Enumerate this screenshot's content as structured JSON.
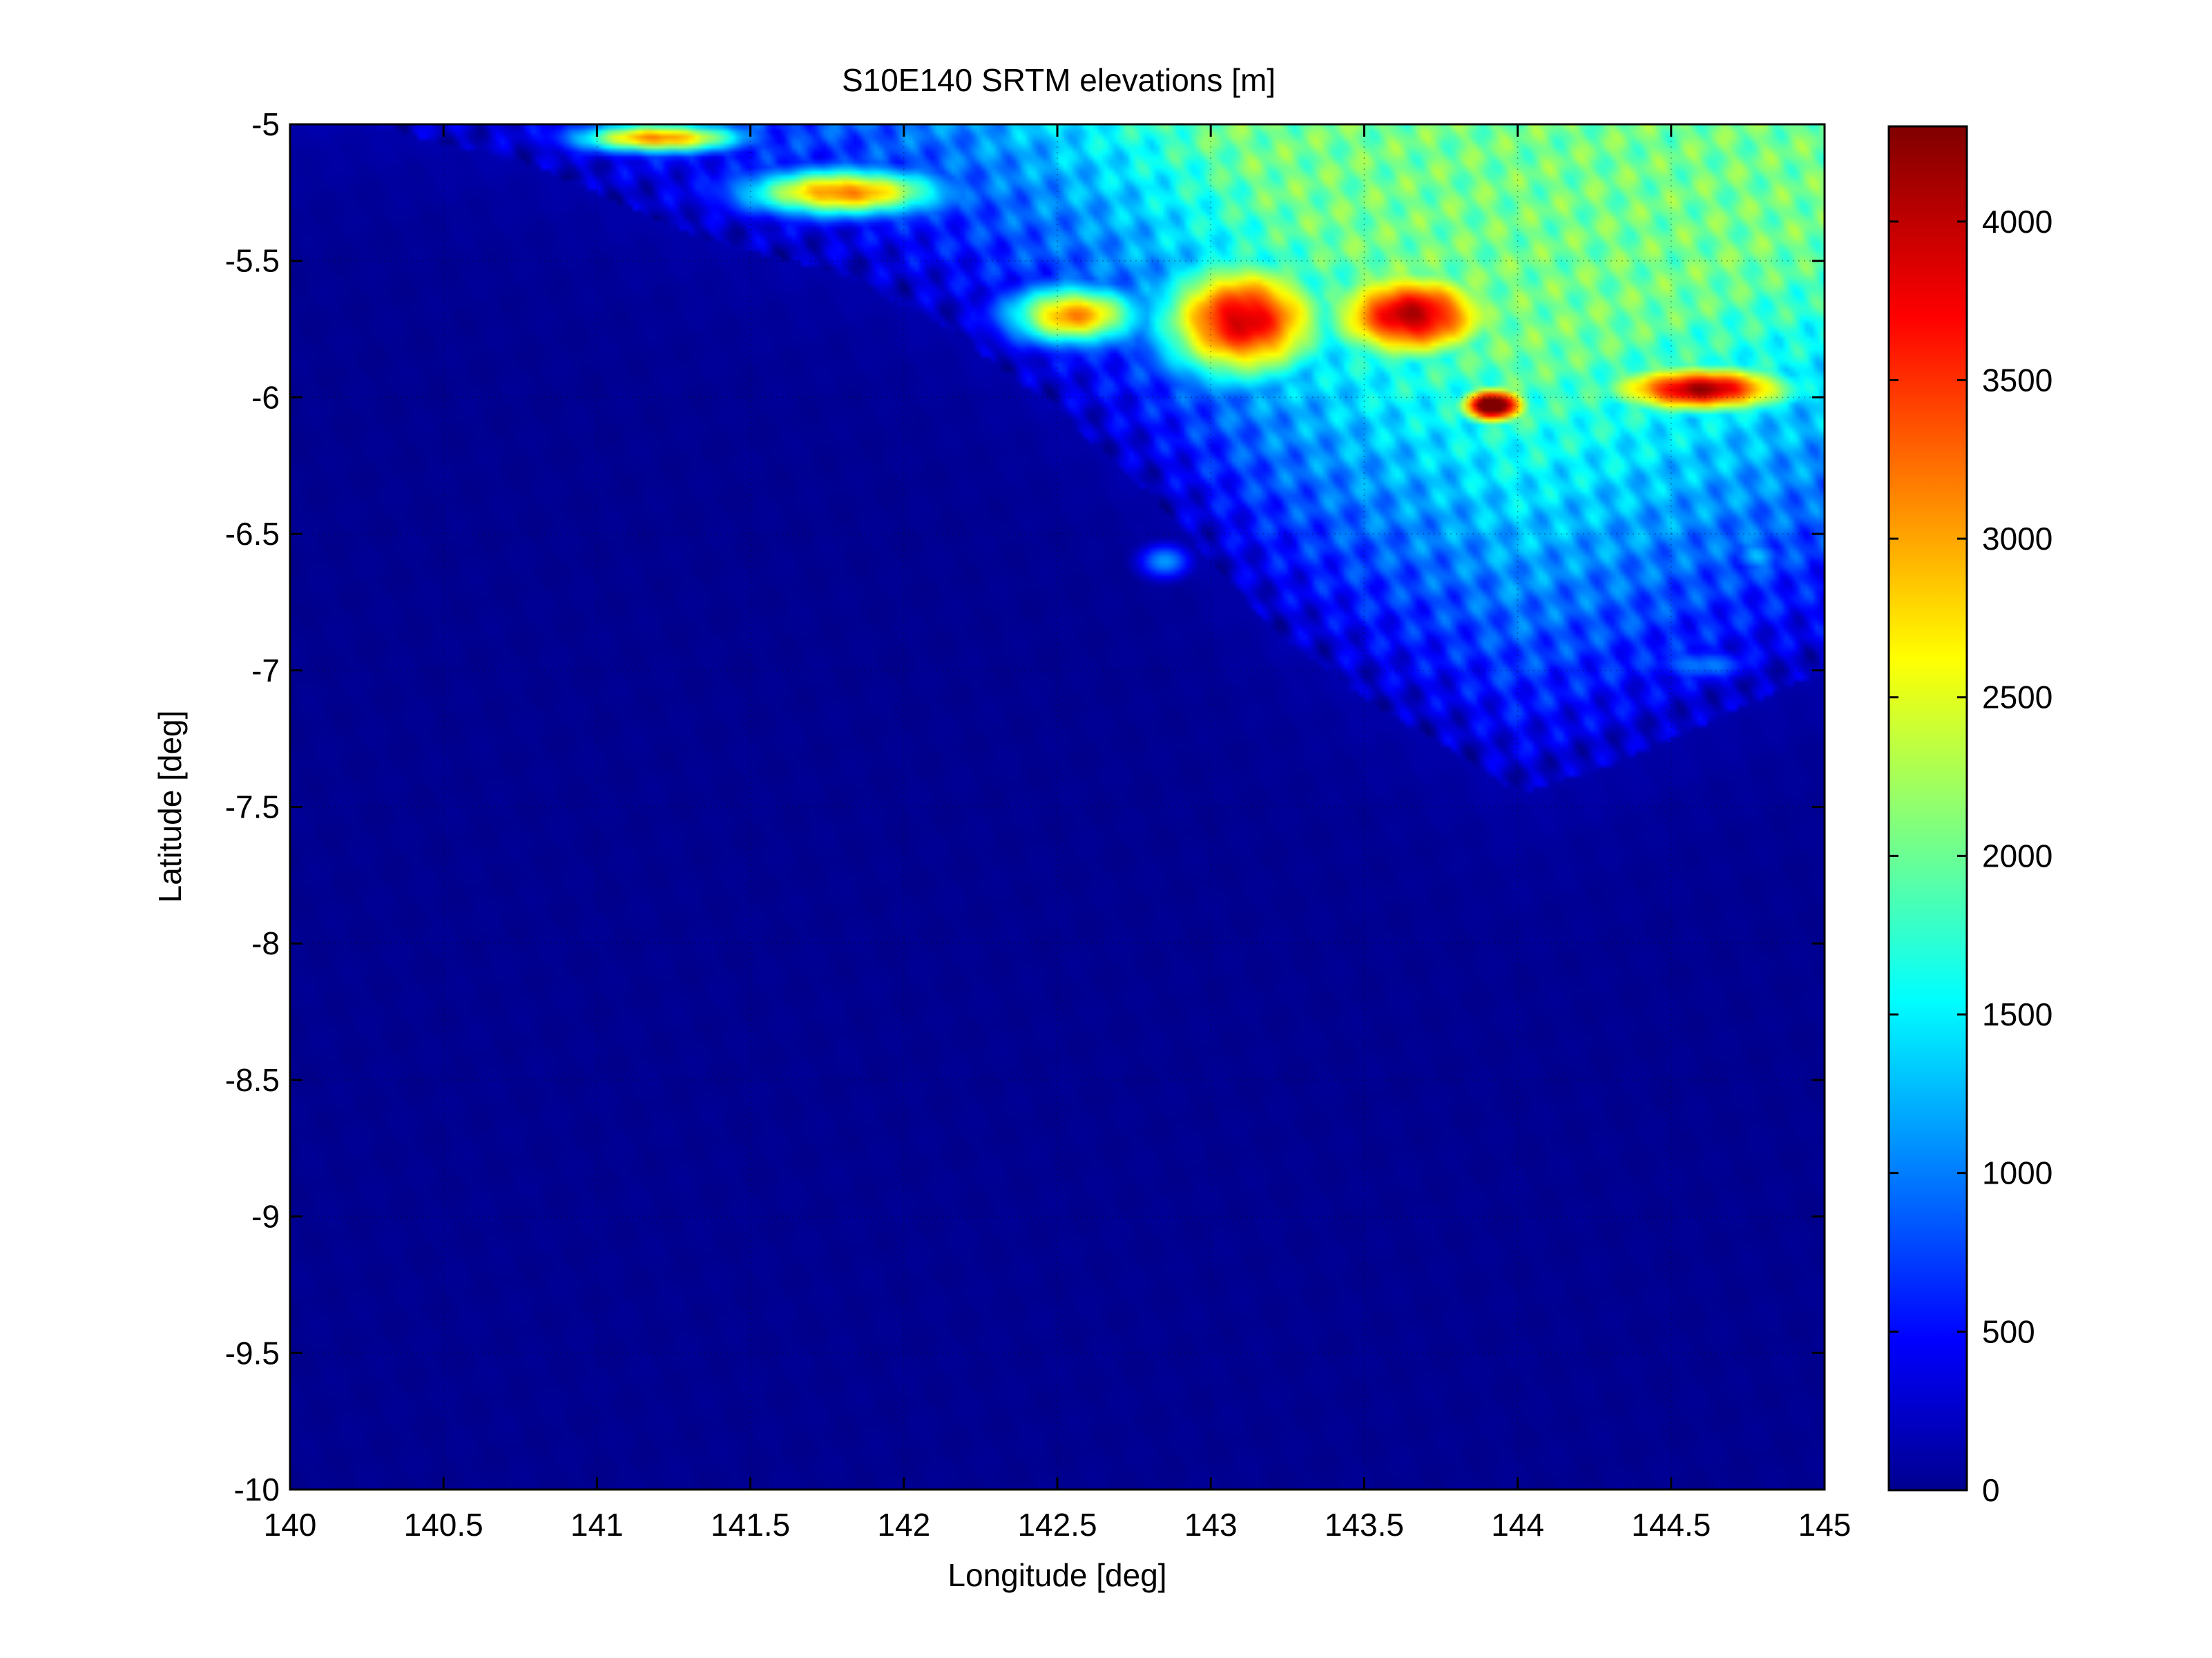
{
  "chart_data": {
    "type": "heatmap",
    "title": "S10E140 SRTM elevations [m]",
    "xlabel": "Longitude [deg]",
    "ylabel": "Latitude [deg]",
    "xlim": [
      140,
      145
    ],
    "ylim": [
      -10,
      -5
    ],
    "x_ticks": [
      140,
      140.5,
      141,
      141.5,
      142,
      142.5,
      143,
      143.5,
      144,
      144.5,
      145
    ],
    "x_tick_labels": [
      "140",
      "140.5",
      "141",
      "141.5",
      "142",
      "142.5",
      "143",
      "143.5",
      "144",
      "144.5",
      "145"
    ],
    "y_ticks": [
      -5,
      -5.5,
      -6,
      -6.5,
      -7,
      -7.5,
      -8,
      -8.5,
      -9,
      -9.5,
      -10
    ],
    "y_tick_labels": [
      "-5",
      "-5.5",
      "-6",
      "-6.5",
      "-7",
      "-7.5",
      "-8",
      "-8.5",
      "-9",
      "-9.5",
      "-10"
    ],
    "grid": true,
    "colormap": "jet",
    "colorbar": {
      "clim": [
        0,
        4300
      ],
      "ticks": [
        0,
        500,
        1000,
        1500,
        2000,
        2500,
        3000,
        3500,
        4000
      ],
      "tick_labels": [
        "0",
        "500",
        "1000",
        "1500",
        "2000",
        "2500",
        "3000",
        "3500",
        "4000"
      ]
    },
    "terrain": {
      "coast_boundary": [
        [
          140.25,
          -5.0
        ],
        [
          140.8,
          -5.15
        ],
        [
          141.3,
          -5.4
        ],
        [
          141.8,
          -5.55
        ],
        [
          142.15,
          -5.75
        ],
        [
          142.5,
          -6.05
        ],
        [
          142.8,
          -6.35
        ],
        [
          143.0,
          -6.6
        ],
        [
          143.2,
          -6.85
        ],
        [
          143.5,
          -7.1
        ],
        [
          143.8,
          -7.3
        ],
        [
          144.0,
          -7.45
        ],
        [
          144.3,
          -7.35
        ],
        [
          144.6,
          -7.2
        ],
        [
          145.0,
          -7.0
        ]
      ],
      "features": [
        {
          "lon": 143.92,
          "lat": -6.03,
          "elev_m": 4150,
          "r_lon": 0.1,
          "r_lat": 0.06
        },
        {
          "lon": 143.1,
          "lat": -5.72,
          "elev_m": 3400,
          "r_lon": 0.25,
          "r_lat": 0.2
        },
        {
          "lon": 143.65,
          "lat": -5.7,
          "elev_m": 3300,
          "r_lon": 0.25,
          "r_lat": 0.15
        },
        {
          "lon": 144.6,
          "lat": -5.97,
          "elev_m": 3500,
          "r_lon": 0.28,
          "r_lat": 0.08
        },
        {
          "lon": 141.8,
          "lat": -5.25,
          "elev_m": 3000,
          "r_lon": 0.3,
          "r_lat": 0.08
        },
        {
          "lon": 141.2,
          "lat": -5.05,
          "elev_m": 3000,
          "r_lon": 0.25,
          "r_lat": 0.05
        },
        {
          "lon": 142.55,
          "lat": -5.7,
          "elev_m": 2900,
          "r_lon": 0.2,
          "r_lat": 0.1
        },
        {
          "lon": 142.85,
          "lat": -6.6,
          "elev_m": 1200,
          "r_lon": 0.08,
          "r_lat": 0.06
        },
        {
          "lon": 144.6,
          "lat": -6.98,
          "elev_m": 900,
          "r_lon": 0.15,
          "r_lat": 0.05
        },
        {
          "lon": 144.78,
          "lat": -6.58,
          "elev_m": 1000,
          "r_lon": 0.07,
          "r_lat": 0.05
        }
      ]
    }
  }
}
